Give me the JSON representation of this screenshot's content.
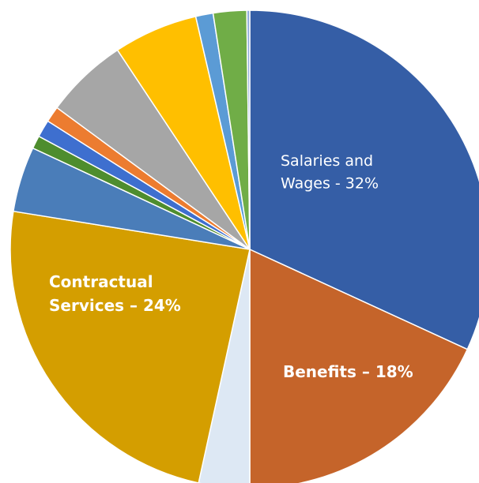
{
  "chart_data": {
    "type": "pie",
    "start_angle_deg": 0,
    "direction": "clockwise",
    "slices": [
      {
        "label": "Salaries and Wages - 32%",
        "value": 32.5,
        "color": "#355EA6",
        "label_color": "#FFFFFF",
        "label_bold": false
      },
      {
        "label": "Benefits – 18%",
        "value": 18.5,
        "color": "#C5642A",
        "label_color": "#FFFFFF",
        "label_bold": true
      },
      {
        "label": "",
        "value": 3.5,
        "color": "#DDE8F4",
        "label_color": "",
        "label_bold": false
      },
      {
        "label": "Contractual Services – 24%",
        "value": 24.6,
        "color": "#D49E00",
        "label_color": "#FFFFFF",
        "label_bold": true
      },
      {
        "label": "",
        "value": 4.5,
        "color": "#4A7DB9",
        "label_color": "",
        "label_bold": false
      },
      {
        "label": "",
        "value": 0.9,
        "color": "#4E8D2E",
        "label_color": "",
        "label_bold": false
      },
      {
        "label": "",
        "value": 1.2,
        "color": "#3E6FCF",
        "label_color": "",
        "label_bold": false
      },
      {
        "label": "",
        "value": 1.1,
        "color": "#EC7C30",
        "label_color": "",
        "label_bold": false
      },
      {
        "label": "",
        "value": 5.7,
        "color": "#A6A6A6",
        "label_color": "",
        "label_bold": false
      },
      {
        "label": "",
        "value": 5.8,
        "color": "#FFBF00",
        "label_color": "",
        "label_bold": false
      },
      {
        "label": "",
        "value": 1.2,
        "color": "#5B9BD5",
        "label_color": "",
        "label_bold": false
      },
      {
        "label": "",
        "value": 2.3,
        "color": "#70AD47",
        "label_color": "",
        "label_bold": false
      },
      {
        "label": "",
        "value": 0.2,
        "color": "#8FAADC",
        "label_color": "",
        "label_bold": false
      }
    ]
  }
}
